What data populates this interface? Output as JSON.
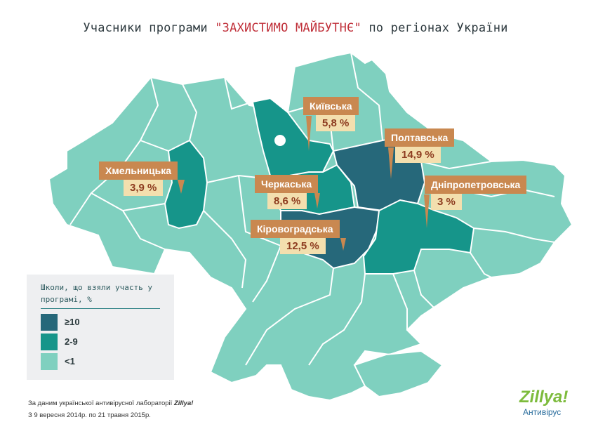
{
  "title": {
    "prefix": "Учасники програми ",
    "highlight": "\"ЗАХИСТИМО МАЙБУТНЄ\"",
    "suffix": " по регіонах України"
  },
  "colors": {
    "high": "#26687a",
    "mid": "#16958a",
    "low": "#7fd0bf",
    "callout_bg": "#c98850",
    "value_bg": "#f3dfae",
    "value_text": "#8d3b1f",
    "title_accent": "#c0303a"
  },
  "regions": [
    {
      "name": "Київська",
      "value": "5,8 %"
    },
    {
      "name": "Полтавська",
      "value": "14,9 %"
    },
    {
      "name": "Хмельницька",
      "value": "3,9 %"
    },
    {
      "name": "Черкаська",
      "value": "8,6 %"
    },
    {
      "name": "Дніпропетровська",
      "value": "3 %"
    },
    {
      "name": "Кіровоградська",
      "value": "12,5 %"
    }
  ],
  "legend": {
    "title": "Школи, що взяли участь у програмі, %",
    "items": [
      {
        "label": "≥10",
        "color": "#26687a"
      },
      {
        "label": "2-9",
        "color": "#16958a"
      },
      {
        "label": "<1",
        "color": "#7fd0bf"
      }
    ]
  },
  "note": {
    "line1_prefix": "За даним української антивірусної лабораторії ",
    "line1_brand": "Zillya!",
    "line2": "З 9 вересня 2014р. по 21 травня 2015р."
  },
  "logo": {
    "name": "Zillya!",
    "sub": "Антивірус"
  }
}
